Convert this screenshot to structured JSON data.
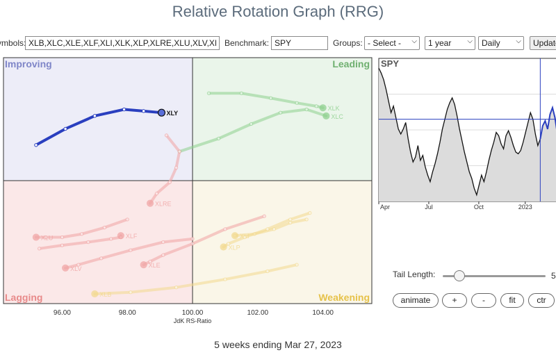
{
  "page": {
    "title": "Relative Rotation Graph (RRG)",
    "footer": "5 weeks ending Mar 27, 2023"
  },
  "controls": {
    "symbols_label": "Symbols:",
    "symbols_value": "XLB,XLC,XLE,XLF,XLI,XLK,XLP,XLRE,XLU,XLV,XLY",
    "benchmark_label": "Benchmark:",
    "benchmark_value": "SPY",
    "groups_label": "Groups:",
    "groups_value": "- Select -",
    "period_value": "1 year",
    "frequency_value": "Daily",
    "update_label": "Update"
  },
  "tail": {
    "label": "Tail Length:",
    "value": 5
  },
  "buttons": {
    "animate": "animate",
    "plus": "+",
    "minus": "-",
    "fit": "fit",
    "ctr": "ctr"
  },
  "chart_data": [
    {
      "type": "scatter",
      "chart": "relative-rotation-graph",
      "xlabel": "JdK RS-Ratio",
      "ylabel": "",
      "xlim": [
        94.2,
        105.5
      ],
      "ylim": [
        96.2,
        103.8
      ],
      "x_ticks": [
        "96.00",
        "98.00",
        "100.00",
        "102.00",
        "104.00"
      ],
      "quadrants": {
        "top_left": {
          "label": "Improving",
          "color": "#7f86c8",
          "fill": "#ededf8"
        },
        "top_right": {
          "label": "Leading",
          "color": "#6fb070",
          "fill": "#eaf5ea"
        },
        "bottom_left": {
          "label": "Lagging",
          "color": "#e88a8a",
          "fill": "#fbe8e8"
        },
        "bottom_right": {
          "label": "Weakening",
          "color": "#e6c24a",
          "fill": "#faf6e8"
        }
      },
      "center": [
        100,
        100
      ],
      "grid": false,
      "series": [
        {
          "name": "XLY",
          "color": "#2a3fbf",
          "highlight": true,
          "points": [
            [
              95.2,
              101.1
            ],
            [
              96.1,
              101.6
            ],
            [
              97.0,
              102.0
            ],
            [
              97.9,
              102.2
            ],
            [
              98.5,
              102.15
            ],
            [
              99.05,
              102.1
            ]
          ]
        },
        {
          "name": "XLK",
          "color": "#8ccf8c",
          "highlight": false,
          "points": [
            [
              100.5,
              102.7
            ],
            [
              101.5,
              102.7
            ],
            [
              102.4,
              102.55
            ],
            [
              103.2,
              102.4
            ],
            [
              103.8,
              102.3
            ],
            [
              104.0,
              102.25
            ]
          ]
        },
        {
          "name": "XLC",
          "color": "#8ccf8c",
          "highlight": false,
          "points": [
            [
              99.6,
              100.9
            ],
            [
              100.8,
              101.3
            ],
            [
              101.8,
              101.75
            ],
            [
              102.7,
              102.1
            ],
            [
              103.5,
              102.2
            ],
            [
              104.1,
              102.0
            ]
          ]
        },
        {
          "name": "XLRE",
          "color": "#f0a3a3",
          "highlight": false,
          "points": [
            [
              99.2,
              101.4
            ],
            [
              99.6,
              100.9
            ],
            [
              99.5,
              100.4
            ],
            [
              99.3,
              99.95
            ],
            [
              98.9,
              99.6
            ],
            [
              98.7,
              99.3
            ]
          ]
        },
        {
          "name": "XLU",
          "color": "#f0a3a3",
          "highlight": false,
          "points": [
            [
              98.0,
              98.8
            ],
            [
              97.3,
              98.55
            ],
            [
              96.6,
              98.35
            ],
            [
              96.0,
              98.25
            ],
            [
              95.5,
              98.25
            ],
            [
              95.2,
              98.25
            ]
          ]
        },
        {
          "name": "XLF",
          "color": "#f0a3a3",
          "highlight": false,
          "points": [
            [
              95.3,
              97.9
            ],
            [
              96.0,
              98.0
            ],
            [
              96.8,
              98.1
            ],
            [
              97.5,
              98.2
            ],
            [
              97.8,
              98.25
            ],
            [
              97.8,
              98.3
            ]
          ]
        },
        {
          "name": "XLV",
          "color": "#f0a3a3",
          "highlight": false,
          "points": [
            [
              100.0,
              98.2
            ],
            [
              99.1,
              98.1
            ],
            [
              98.1,
              97.85
            ],
            [
              97.2,
              97.6
            ],
            [
              96.5,
              97.4
            ],
            [
              96.1,
              97.3
            ]
          ]
        },
        {
          "name": "XLE",
          "color": "#f0a3a3",
          "highlight": false,
          "points": [
            [
              102.2,
              98.9
            ],
            [
              101.0,
              98.5
            ],
            [
              100.0,
              98.05
            ],
            [
              99.1,
              97.7
            ],
            [
              98.7,
              97.5
            ],
            [
              98.5,
              97.4
            ]
          ]
        },
        {
          "name": "XLI",
          "color": "#f2d98c",
          "highlight": false,
          "points": [
            [
              103.5,
              98.8
            ],
            [
              103.0,
              98.7
            ],
            [
              102.5,
              98.5
            ],
            [
              101.9,
              98.35
            ],
            [
              101.3,
              98.3
            ],
            [
              101.3,
              98.3
            ]
          ]
        },
        {
          "name": "XLB",
          "color": "#f2d98c",
          "highlight": false,
          "points": [
            [
              103.2,
              97.4
            ],
            [
              102.3,
              97.2
            ],
            [
              101.0,
              96.95
            ],
            [
              99.5,
              96.7
            ],
            [
              98.1,
              96.55
            ],
            [
              97.0,
              96.5
            ]
          ]
        },
        {
          "name": "XLP",
          "color": "#f2d98c",
          "highlight": false,
          "points": [
            [
              103.6,
              99.0
            ],
            [
              103.0,
              98.8
            ],
            [
              102.3,
              98.5
            ],
            [
              101.6,
              98.25
            ],
            [
              101.1,
              98.05
            ],
            [
              100.95,
              97.95
            ]
          ]
        }
      ]
    },
    {
      "type": "area",
      "chart": "benchmark-price",
      "title": "SPY",
      "x_ticks": [
        "Apr",
        "Jul",
        "Oct",
        "2023"
      ],
      "values": [
        435,
        432,
        428,
        422,
        415,
        408,
        412,
        405,
        398,
        395,
        398,
        402,
        392,
        384,
        378,
        381,
        388,
        379,
        382,
        375,
        370,
        366,
        372,
        377,
        383,
        390,
        398,
        404,
        410,
        414,
        417,
        413,
        406,
        398,
        391,
        384,
        378,
        372,
        368,
        362,
        358,
        364,
        370,
        366,
        372,
        379,
        385,
        390,
        396,
        394,
        389,
        386,
        394,
        397,
        393,
        388,
        384,
        383,
        385,
        390,
        396,
        402,
        408,
        404,
        395,
        388,
        392,
        400,
        403,
        398,
        407,
        411,
        405,
        395
      ],
      "reference_value": 404,
      "highlight_from_index": 66,
      "fill": "#dcdcdc",
      "line_color": "#111111",
      "highlight_color": "#2a3fbf"
    }
  ]
}
